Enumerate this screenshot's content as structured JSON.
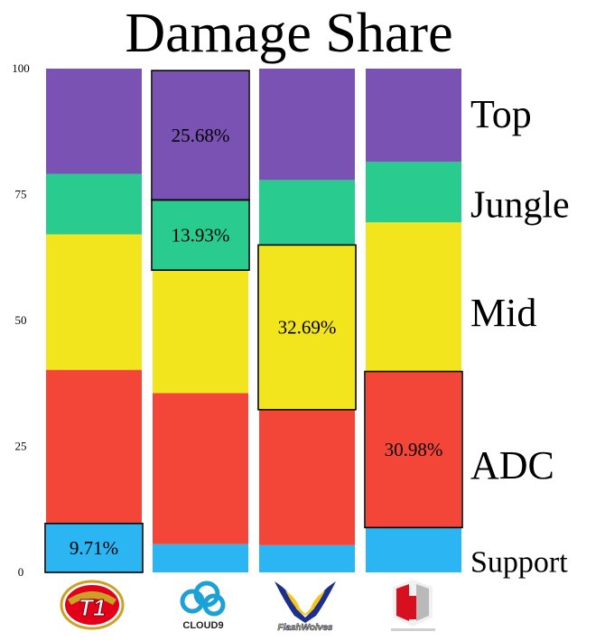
{
  "chart_data": {
    "type": "bar",
    "stacked": true,
    "percent": true,
    "title": "Damage Share",
    "categories": [
      "T1",
      "Cloud9",
      "Flash Wolves",
      "Immortals"
    ],
    "ylim": [
      0,
      100
    ],
    "yticks": [
      0,
      25,
      50,
      75,
      100
    ],
    "legend_placement": "right",
    "series": [
      {
        "name": "Support",
        "color": "#2bb5f2",
        "values": [
          9.71,
          5.6,
          5.4,
          8.9
        ]
      },
      {
        "name": "ADC",
        "color": "#f44638",
        "values": [
          30.5,
          30.0,
          26.9,
          30.98
        ]
      },
      {
        "name": "Mid",
        "color": "#f2e51e",
        "values": [
          26.9,
          24.4,
          32.69,
          29.6
        ]
      },
      {
        "name": "Jungle",
        "color": "#2acb8f",
        "values": [
          12.0,
          13.93,
          12.9,
          12.0
        ]
      },
      {
        "name": "Top",
        "color": "#7a52b3",
        "values": [
          20.89,
          25.68,
          22.11,
          18.52
        ]
      }
    ],
    "data_labels": [
      {
        "category": 0,
        "series": 0,
        "text": "9.71%"
      },
      {
        "category": 1,
        "series": 4,
        "text": "25.68%"
      },
      {
        "category": 1,
        "series": 3,
        "text": "13.93%"
      },
      {
        "category": 2,
        "series": 2,
        "text": "32.69%"
      },
      {
        "category": 3,
        "series": 1,
        "text": "30.98%"
      }
    ],
    "team_logos": [
      {
        "category": 0,
        "icon": "t1-logo",
        "colors": [
          "#e2001a",
          "#c9a227"
        ],
        "text": "T1"
      },
      {
        "category": 1,
        "icon": "cloud9-logo",
        "colors": [
          "#1ba1d6",
          "#222222"
        ],
        "text": "CLOUD9"
      },
      {
        "category": 2,
        "icon": "flash-wolves-logo",
        "colors": [
          "#1c2f8c",
          "#f5c518"
        ],
        "text": "FlashWolves"
      },
      {
        "category": 3,
        "icon": "immortals-logo",
        "colors": [
          "#d6101e",
          "#b0b0b0"
        ],
        "text": ""
      }
    ]
  }
}
